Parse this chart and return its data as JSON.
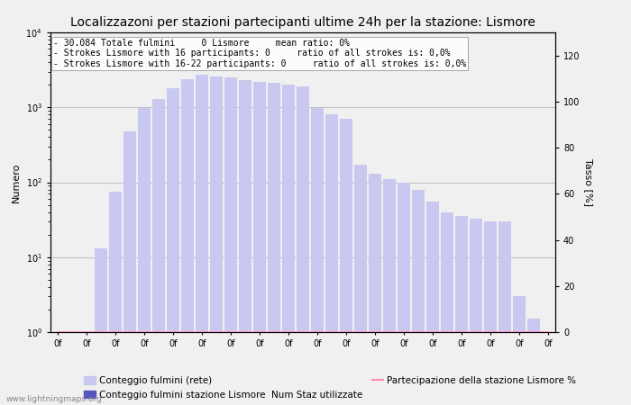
{
  "title": "Localizzazoni per stazioni partecipanti ultime 24h per la stazione: Lismore",
  "ylabel_left": "Numero",
  "ylabel_right": "Tasso [%]",
  "info_lines": [
    "30.084 Totale fulmini     0 Lismore     mean ratio: 0%",
    "Strokes Lismore with 16 participants: 0     ratio of all strokes is: 0,0%",
    "Strokes Lismore with 16-22 participants: 0     ratio of all strokes is: 0,0%"
  ],
  "num_bars": 35,
  "bar_values": [
    1,
    1,
    1,
    13,
    75,
    480,
    980,
    1300,
    1800,
    2400,
    2700,
    2600,
    2500,
    2300,
    2200,
    2100,
    2000,
    1900,
    980,
    800,
    700,
    170,
    130,
    110,
    100,
    80,
    55,
    40,
    35,
    33,
    30,
    30,
    3,
    1.5,
    1
  ],
  "bar_color": "#c8c8f0",
  "bar_color_station": "#5555bb",
  "station_values": [
    0,
    0,
    0,
    0,
    0,
    0,
    0,
    0,
    0,
    0,
    0,
    0,
    0,
    0,
    0,
    0,
    0,
    0,
    0,
    0,
    0,
    0,
    0,
    0,
    0,
    0,
    0,
    0,
    0,
    0,
    0,
    0,
    0,
    0,
    0
  ],
  "participation_line": [
    0,
    0,
    0,
    0,
    0,
    0,
    0,
    0,
    0,
    0,
    0,
    0,
    0,
    0,
    0,
    0,
    0,
    0,
    0,
    0,
    0,
    0,
    0,
    0,
    0,
    0,
    0,
    0,
    0,
    0,
    0,
    0,
    0,
    0,
    0
  ],
  "ylim_left": [
    1,
    10000
  ],
  "ylim_right": [
    0,
    130
  ],
  "right_ticks": [
    0,
    20,
    40,
    60,
    80,
    100,
    120
  ],
  "background_color": "#f0f0f0",
  "grid_color": "#aaaaaa",
  "legend_label_1": "Conteggio fulmini (rete)",
  "legend_label_2": "Conteggio fulmini stazione Lismore",
  "legend_label_3": "Num Staz utilizzate",
  "legend_label_4": "Partecipazione della stazione Lismore %",
  "watermark": "www.lightningmaps.org",
  "title_fontsize": 10,
  "axis_fontsize": 8,
  "info_fontsize": 7,
  "tick_fontsize": 7
}
